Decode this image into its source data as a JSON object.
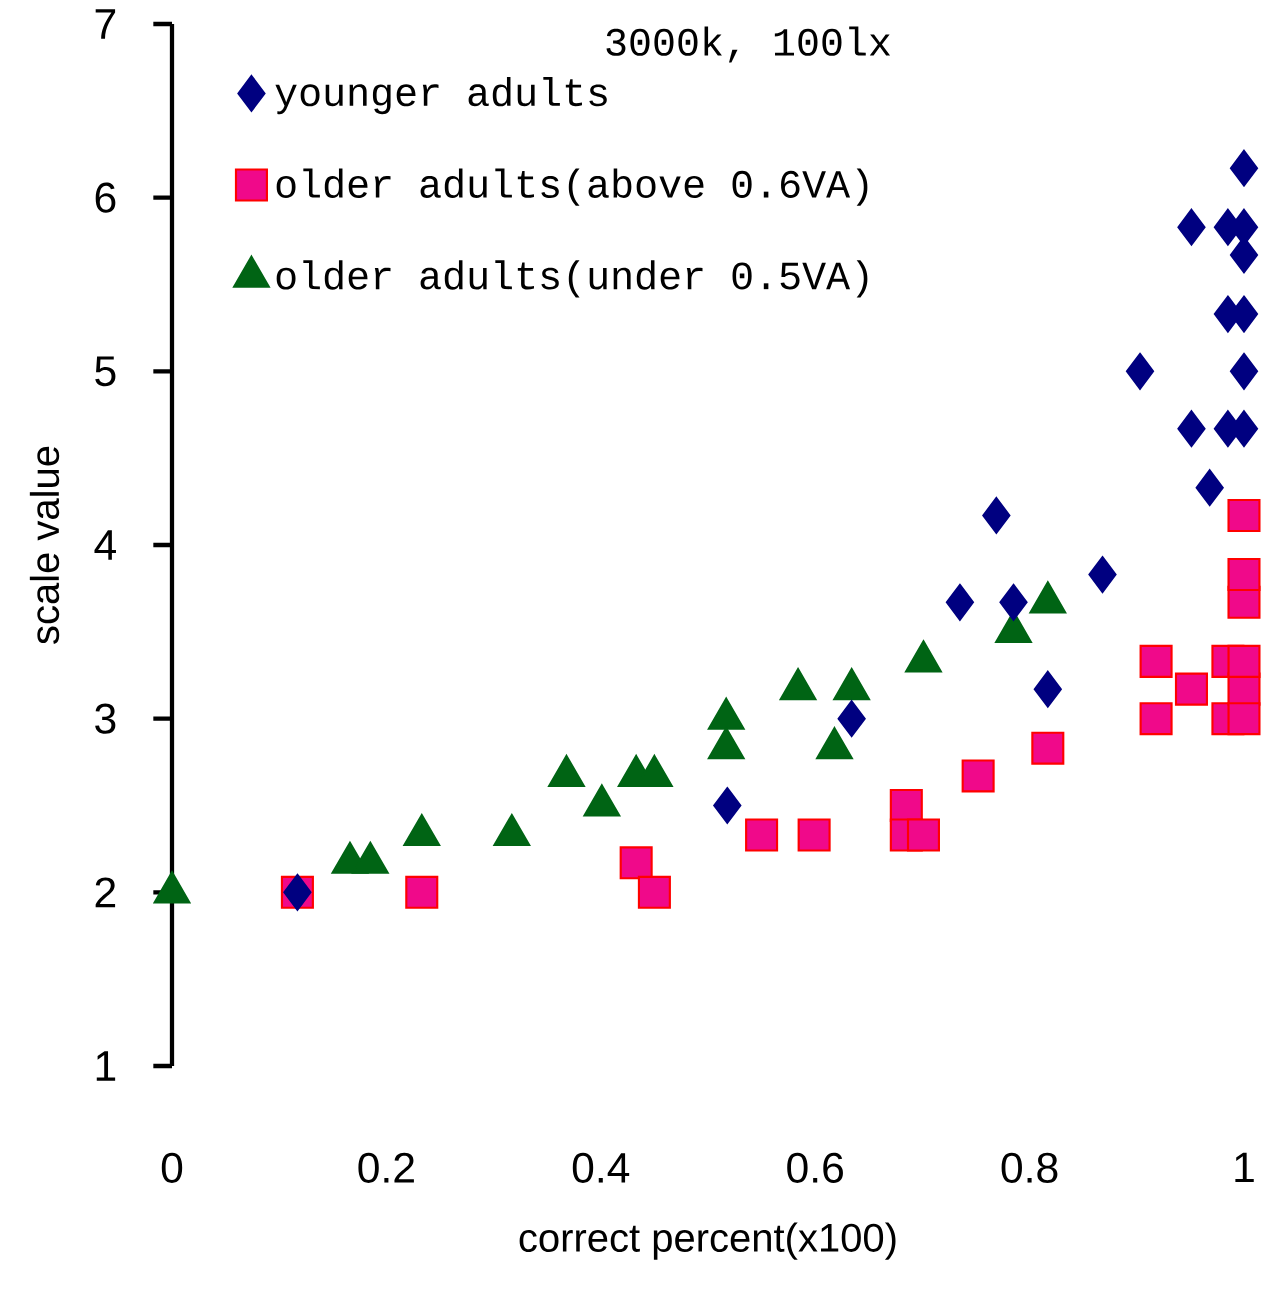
{
  "chart_data": {
    "type": "scatter",
    "title": "3000k, 100lx",
    "xlabel": "correct percent(x100)",
    "ylabel": "scale value",
    "xlim": [
      0,
      1
    ],
    "ylim": [
      1,
      7
    ],
    "xticks": [
      0,
      0.2,
      0.4,
      0.6,
      0.8,
      1
    ],
    "yticks": [
      1,
      2,
      3,
      4,
      5,
      6,
      7
    ],
    "grid": false,
    "legend": "top left",
    "series": [
      {
        "name": "younger adults",
        "marker": "diamond",
        "color": "#000080",
        "x": [
          0.117,
          0.518,
          0.634,
          0.735,
          0.785,
          0.817,
          0.769,
          0.868,
          0.903,
          0.951,
          0.951,
          0.968,
          0.985,
          0.985,
          0.985,
          1,
          1,
          1,
          1,
          1,
          1
        ],
        "values": [
          2.0,
          2.5,
          3.0,
          3.67,
          3.67,
          3.17,
          4.17,
          3.83,
          5.0,
          4.67,
          5.83,
          4.33,
          4.67,
          5.33,
          5.83,
          4.67,
          5.0,
          5.33,
          5.67,
          5.83,
          6.17
        ]
      },
      {
        "name": "older adults(above 0.6VA)",
        "marker": "square",
        "color": "#f0098a",
        "x": [
          0.117,
          0.233,
          0.433,
          0.45,
          0.55,
          0.599,
          0.685,
          0.685,
          0.701,
          0.752,
          0.817,
          0.918,
          0.918,
          0.951,
          0.985,
          0.985,
          1,
          1,
          1,
          1,
          1,
          1
        ],
        "values": [
          2.0,
          2.0,
          2.17,
          2.0,
          2.33,
          2.33,
          2.5,
          2.33,
          2.33,
          2.67,
          2.83,
          3.33,
          3.0,
          3.17,
          3.33,
          3.0,
          3.17,
          3.33,
          3.67,
          3.83,
          4.17,
          3.0
        ]
      },
      {
        "name": "older adults(under 0.5VA)",
        "marker": "triangle",
        "color": "#006414",
        "x": [
          0,
          0.166,
          0.185,
          0.233,
          0.317,
          0.368,
          0.401,
          0.433,
          0.45,
          0.517,
          0.517,
          0.584,
          0.618,
          0.634,
          0.701,
          0.785,
          0.817
        ],
        "values": [
          2.0,
          2.17,
          2.17,
          2.33,
          2.33,
          2.67,
          2.5,
          2.67,
          2.67,
          3.0,
          2.83,
          3.17,
          2.83,
          3.17,
          3.33,
          3.5,
          3.67
        ]
      }
    ]
  }
}
